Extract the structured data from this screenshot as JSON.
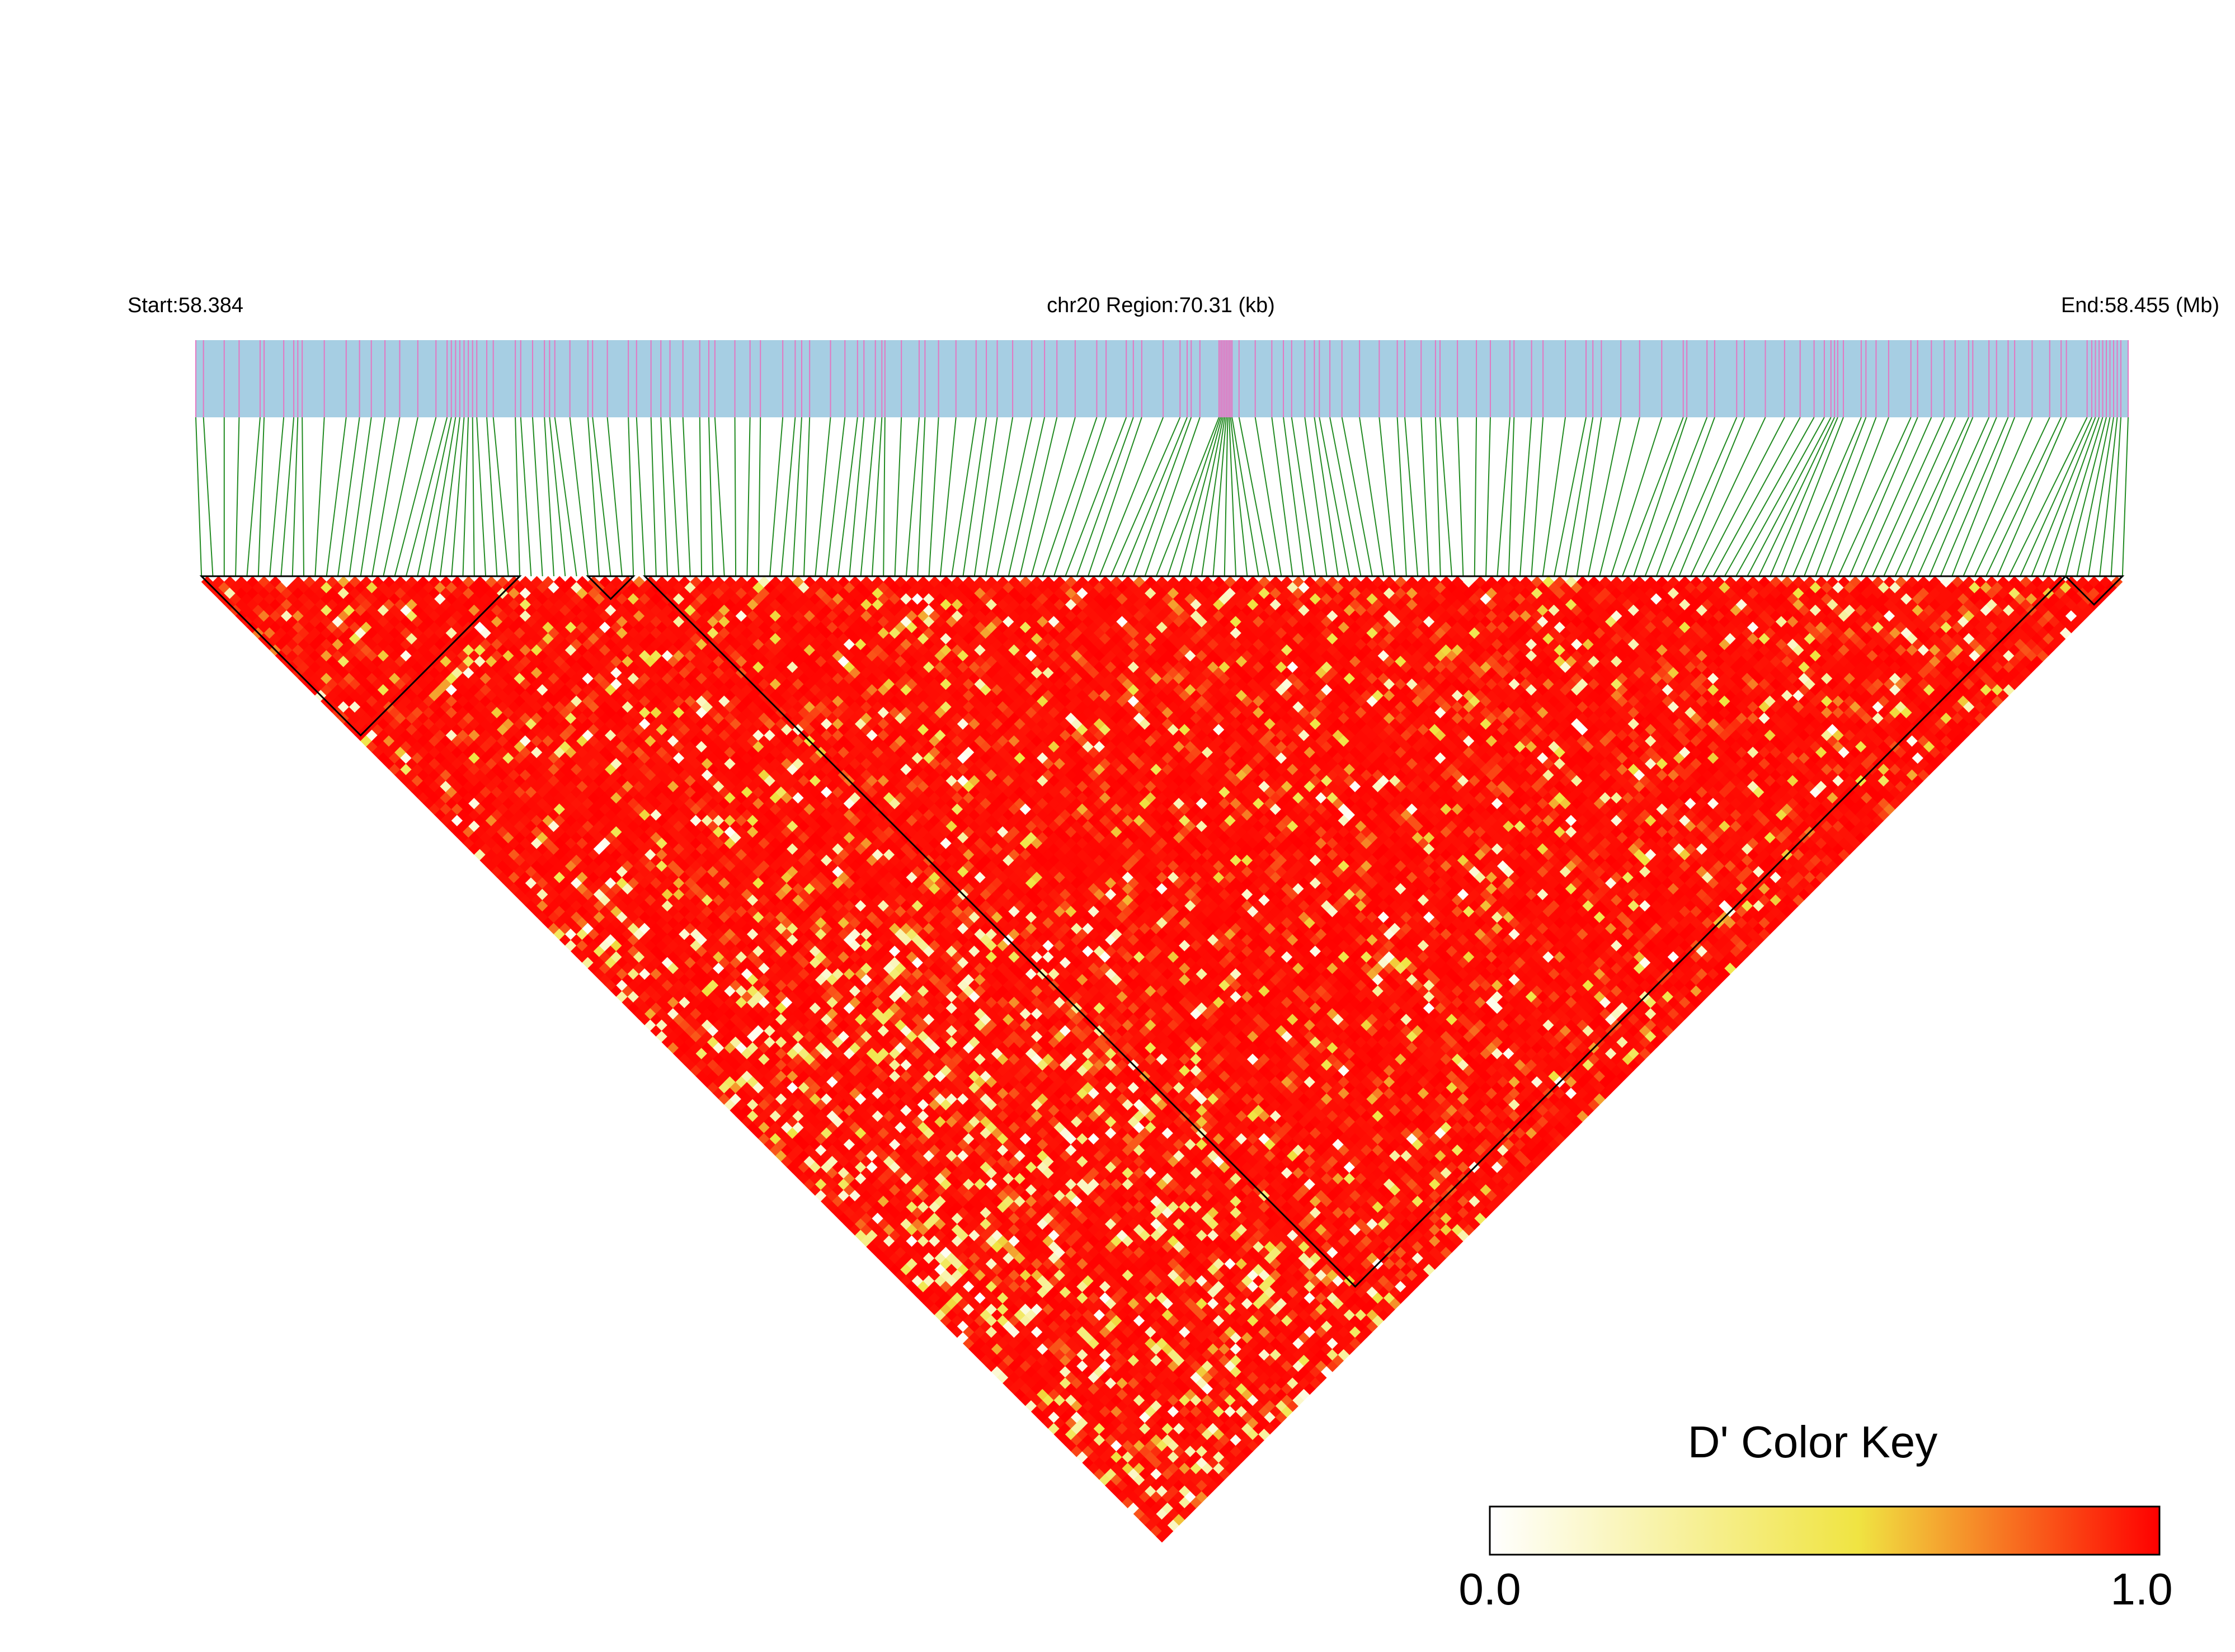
{
  "chart_data": {
    "type": "heatmap",
    "title": "chr20 Region:70.31 (kb)",
    "start_label": "Start:58.384",
    "end_label": "End:58.455 (Mb)",
    "chromosome": "chr20",
    "region_start_mb": 58.384,
    "region_end_mb": 58.455,
    "region_length_kb": 70.31,
    "snp_count": 170,
    "ld_blocks": [
      {
        "first_snp": 1,
        "last_snp": 29
      },
      {
        "first_snp": 35,
        "last_snp": 39
      },
      {
        "first_snp": 40,
        "last_snp": 165
      },
      {
        "first_snp": 165,
        "last_snp": 170
      }
    ],
    "color_key": {
      "title": "D' Color Key",
      "min_label": "0.0",
      "max_label": "1.0",
      "min": 0.0,
      "max": 1.0,
      "colors": [
        "#ffffff",
        "#f0e442",
        "#ff0000"
      ]
    },
    "colors": {
      "track": "#a6cee3",
      "snp_tick": "#e377c2",
      "connector": "#228b22",
      "high_ld": "#ff0000",
      "block_outline": "#000000"
    }
  }
}
